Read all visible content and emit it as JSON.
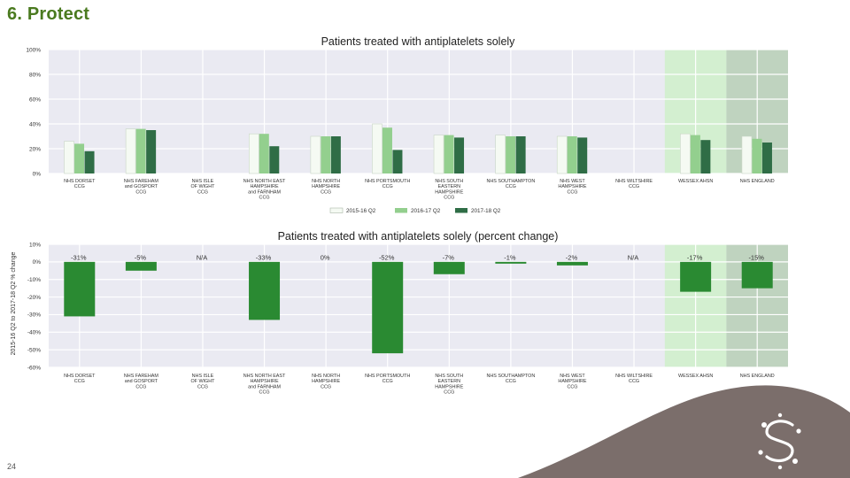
{
  "slide": {
    "title": "6. Protect",
    "page_number": "24"
  },
  "colors": {
    "plot_bg": "#eaeaf2",
    "highlight_wessex": "#d3efd0",
    "highlight_england": "#bfd3bf",
    "series": [
      "#f5faf3",
      "#93cf8e",
      "#2f6d46"
    ],
    "change_bar": "#2a8a32",
    "grid": "#ffffff"
  },
  "chart_data": [
    {
      "type": "bar",
      "title": "Patients treated with antiplatelets solely",
      "categories": [
        [
          "NHS DORSET",
          "CCG"
        ],
        [
          "NHS FAREHAM",
          "and GOSPORT",
          "CCG"
        ],
        [
          "NHS ISLE",
          "OF WIGHT",
          "CCG"
        ],
        [
          "NHS NORTH EAST",
          "HAMPSHIRE",
          "and FARNHAM",
          "CCG"
        ],
        [
          "NHS NORTH",
          "HAMPSHIRE",
          "CCG"
        ],
        [
          "NHS PORTSMOUTH",
          "CCG"
        ],
        [
          "NHS SOUTH",
          "EASTERN",
          "HAMPSHIRE",
          "CCG"
        ],
        [
          "NHS SOUTHAMPTON",
          "CCG"
        ],
        [
          "NHS WEST",
          "HAMPSHIRE",
          "CCG"
        ],
        [
          "NHS WILTSHIRE",
          "CCG"
        ],
        [
          "WESSEX AHSN"
        ],
        [
          "NHS ENGLAND"
        ]
      ],
      "series": [
        {
          "name": "2015-16 Q2",
          "values": [
            26,
            36,
            null,
            32,
            30,
            40,
            31,
            31,
            30,
            null,
            32,
            30
          ]
        },
        {
          "name": "2016-17 Q2",
          "values": [
            24,
            36,
            null,
            32,
            30,
            37,
            31,
            30,
            30,
            null,
            31,
            28
          ]
        },
        {
          "name": "2017-18 Q2",
          "values": [
            18,
            35,
            null,
            22,
            30,
            19,
            29,
            30,
            29,
            null,
            27,
            25
          ]
        }
      ],
      "ylim": [
        0,
        100
      ],
      "yticks": [
        "0%",
        "20%",
        "40%",
        "60%",
        "80%",
        "100%"
      ],
      "ytick_values": [
        0,
        20,
        40,
        60,
        80,
        100
      ],
      "highlighted_categories": [
        10,
        11
      ],
      "grid": true,
      "legend": "bottom-center"
    },
    {
      "type": "bar",
      "title": "Patients treated with antiplatelets solely (percent change)",
      "ylabel": "2015-16 Q2 to 2017-18 Q2 % change",
      "categories": [
        [
          "NHS DORSET",
          "CCG"
        ],
        [
          "NHS FAREHAM",
          "and GOSPORT",
          "CCG"
        ],
        [
          "NHS ISLE",
          "OF WIGHT",
          "CCG"
        ],
        [
          "NHS NORTH EAST",
          "HAMPSHIRE",
          "and FARNHAM",
          "CCG"
        ],
        [
          "NHS NORTH",
          "HAMPSHIRE",
          "CCG"
        ],
        [
          "NHS PORTSMOUTH",
          "CCG"
        ],
        [
          "NHS SOUTH",
          "EASTERN",
          "HAMPSHIRE",
          "CCG"
        ],
        [
          "NHS SOUTHAMPTON",
          "CCG"
        ],
        [
          "NHS WEST",
          "HAMPSHIRE",
          "CCG"
        ],
        [
          "NHS WILTSHIRE",
          "CCG"
        ],
        [
          "WESSEX AHSN"
        ],
        [
          "NHS ENGLAND"
        ]
      ],
      "values": [
        -31,
        -5,
        null,
        -33,
        0,
        -52,
        -7,
        -1,
        -2,
        null,
        -17,
        -15
      ],
      "data_labels": [
        "-31%",
        "-5%",
        "N/A",
        "-33%",
        "0%",
        "-52%",
        "-7%",
        "-1%",
        "-2%",
        "N/A",
        "-17%",
        "-15%"
      ],
      "ylim": [
        -60,
        10
      ],
      "yticks": [
        "-60%",
        "-50%",
        "-40%",
        "-30%",
        "-20%",
        "-10%",
        "0%",
        "10%"
      ],
      "ytick_values": [
        -60,
        -50,
        -40,
        -30,
        -20,
        -10,
        0,
        10
      ],
      "highlighted_categories": [
        10,
        11
      ],
      "grid": true
    }
  ]
}
